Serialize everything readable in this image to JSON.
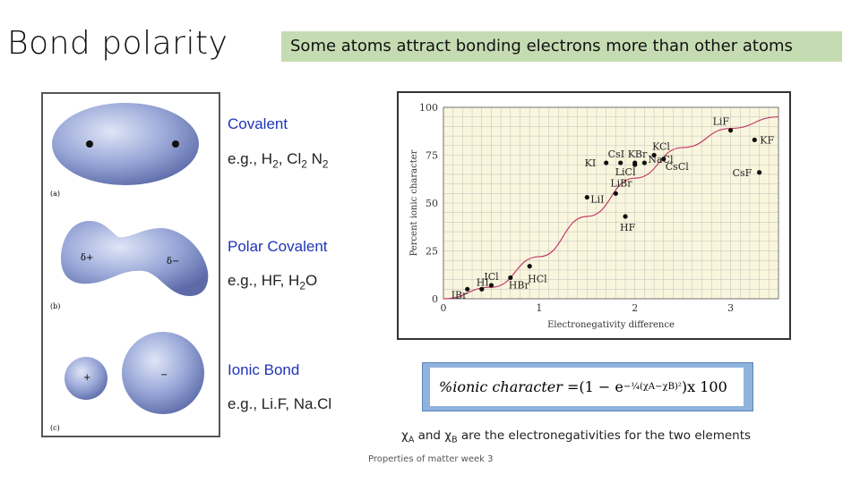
{
  "slide": {
    "title": "Bond polarity",
    "subtitle": "Some atoms attract bonding electrons more than other atoms",
    "footer": "Properties of matter week 3"
  },
  "figure": {
    "panel_labels": [
      "(a)",
      "(b)",
      "(c)"
    ],
    "partial_pos": "δ+",
    "partial_neg": "δ−",
    "plus": "+",
    "minus": "−"
  },
  "bonds": {
    "covalent": {
      "heading": "Covalent",
      "example_prefix": "e.g., H",
      "example_s1": "2",
      "example_mid1": ", Cl",
      "example_s2": "2",
      "example_mid2": " N",
      "example_s3": "2"
    },
    "polar": {
      "heading": "Polar Covalent",
      "example_prefix": "e.g., HF, H",
      "example_s1": "2",
      "example_mid1": "O"
    },
    "ionic": {
      "heading": "Ionic Bond",
      "example": "e.g., Li.F, Na.Cl"
    }
  },
  "formula": {
    "lhs": "%ionic character = ",
    "open": "(1 − e",
    "exp_coef": "−¼",
    "exp_body": "(χA−χB)²",
    "close": ")",
    "times": " x 100"
  },
  "note": {
    "chi_a": "χ",
    "sub_a": "A",
    "and": " and ",
    "chi_b": "χ",
    "sub_b": "B",
    "rest": " are the electronegativities for the two elements"
  },
  "chart_data": {
    "type": "scatter",
    "xlabel": "Electronegativity difference",
    "ylabel": "Percent ionic character",
    "xlim": [
      0,
      3.5
    ],
    "ylim": [
      0,
      100
    ],
    "x_ticks": [
      "0",
      "1",
      "2",
      "3"
    ],
    "y_ticks": [
      "0",
      "25",
      "50",
      "75",
      "100"
    ],
    "grid": true,
    "points": [
      {
        "label": "IBr",
        "x": 0.25,
        "y": 5
      },
      {
        "label": "HI",
        "x": 0.4,
        "y": 5
      },
      {
        "label": "ICl",
        "x": 0.5,
        "y": 7
      },
      {
        "label": "HBr",
        "x": 0.7,
        "y": 11
      },
      {
        "label": "HCl",
        "x": 0.9,
        "y": 17
      },
      {
        "label": "LiI",
        "x": 1.5,
        "y": 53
      },
      {
        "label": "LiBr",
        "x": 1.8,
        "y": 55
      },
      {
        "label": "HF",
        "x": 1.9,
        "y": 43
      },
      {
        "label": "KI",
        "x": 1.7,
        "y": 71
      },
      {
        "label": "CsI",
        "x": 1.85,
        "y": 71
      },
      {
        "label": "KBr",
        "x": 2.0,
        "y": 71
      },
      {
        "label": "LiCl",
        "x": 2.0,
        "y": 70
      },
      {
        "label": "NaCl",
        "x": 2.1,
        "y": 71
      },
      {
        "label": "KCl",
        "x": 2.2,
        "y": 75
      },
      {
        "label": "CsCl",
        "x": 2.3,
        "y": 73
      },
      {
        "label": "LiF",
        "x": 3.0,
        "y": 88
      },
      {
        "label": "KF",
        "x": 3.25,
        "y": 83
      },
      {
        "label": "CsF",
        "x": 3.3,
        "y": 66
      }
    ],
    "curve": [
      [
        0,
        0
      ],
      [
        0.5,
        6
      ],
      [
        1,
        22
      ],
      [
        1.5,
        43
      ],
      [
        2,
        63
      ],
      [
        2.5,
        79
      ],
      [
        3,
        89
      ],
      [
        3.5,
        95
      ]
    ],
    "colors": {
      "background": "#faf6dd",
      "curve": "#c23c6a",
      "grid": "#bfbfbf"
    }
  }
}
